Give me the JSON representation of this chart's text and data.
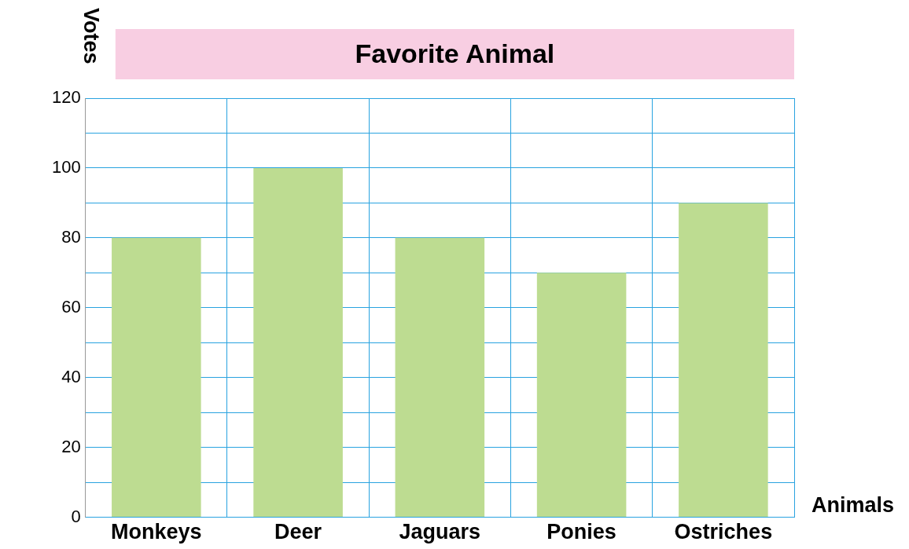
{
  "chart_data": {
    "type": "bar",
    "title": "Favorite Animal",
    "xlabel": "Animals",
    "ylabel": "Votes",
    "categories": [
      "Monkeys",
      "Deer",
      "Jaguars",
      "Ponies",
      "Ostriches"
    ],
    "values": [
      80,
      100,
      80,
      70,
      90
    ],
    "color": "#bddc91",
    "ylim": [
      0,
      120
    ],
    "yticks": [
      0,
      {
        "value": 10,
        "label": null
      },
      20,
      {
        "value": 30,
        "label": null
      },
      40,
      {
        "value": 50,
        "label": null
      },
      60,
      {
        "value": 70,
        "label": null
      },
      80,
      {
        "value": 90,
        "label": null
      },
      100,
      {
        "value": 110,
        "label": null
      },
      120
    ],
    "grid": true,
    "legend": false
  }
}
